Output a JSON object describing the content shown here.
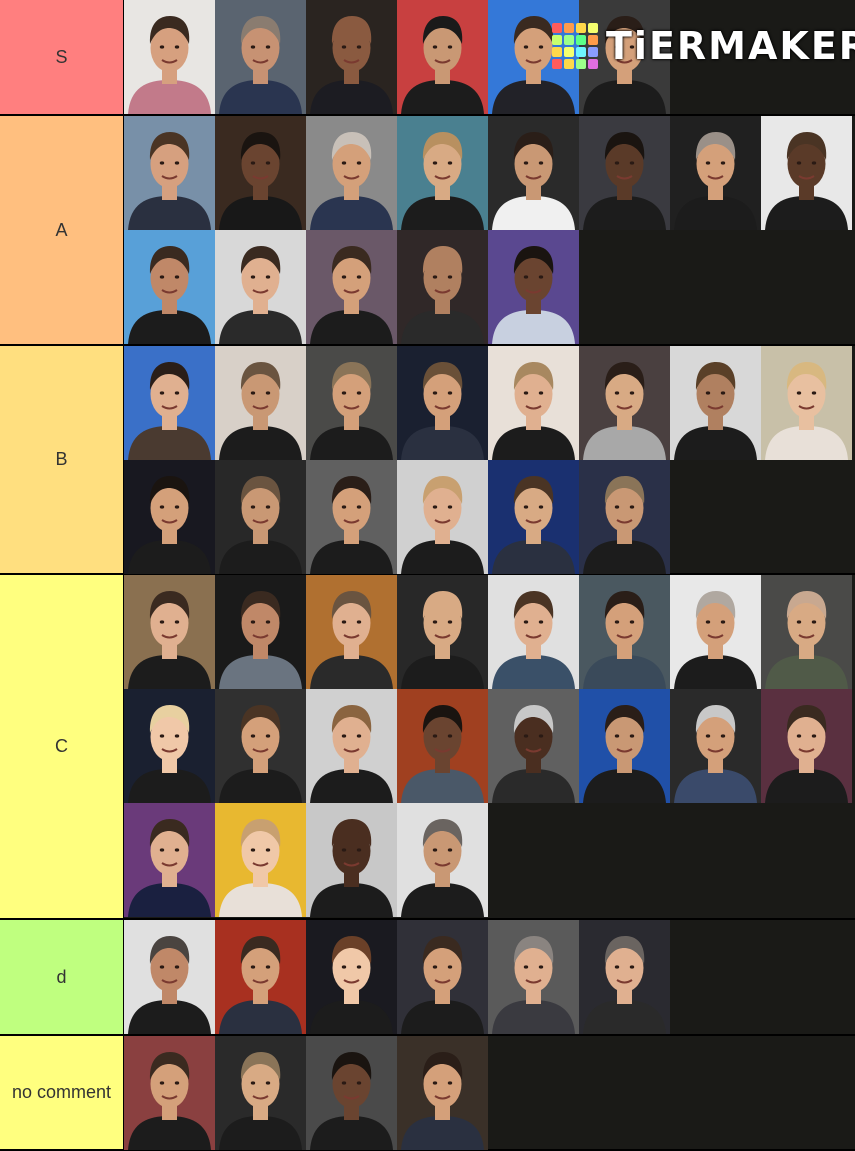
{
  "watermark": {
    "text": "TiERMAKER",
    "colors": [
      "#ff5c5c",
      "#ff9b4a",
      "#ffd84a",
      "#f5ff6e",
      "#c8ff6e",
      "#9cff8a",
      "#5cff8a",
      "#ff9b4a",
      "#ffd84a",
      "#f5ff6e",
      "#6ef5ff",
      "#8a9cff",
      "#ff5c5c",
      "#ffd84a",
      "#9cff8a",
      "#e06ee0"
    ]
  },
  "tiers": [
    {
      "id": "s",
      "label": "S",
      "color": "#ff7f7f",
      "tiles": [
        {
          "bg": "#e8e6e3",
          "skin": "#d6a07f",
          "hair": "#3a2a20",
          "shirt": "#c27a8a"
        },
        {
          "bg": "#5a6470",
          "skin": "#c79273",
          "hair": "#8a7c70",
          "shirt": "#2a3550"
        },
        {
          "bg": "#2a2420",
          "skin": "#8a5a40",
          "hair": "#8a5a40",
          "shirt": "#1c1c22"
        },
        {
          "bg": "#c84040",
          "skin": "#c99874",
          "hair": "#1a1a1a",
          "shirt": "#1c1c1c"
        },
        {
          "bg": "#3478d8",
          "skin": "#d4a07a",
          "hair": "#3a2a20",
          "shirt": "#222228"
        },
        {
          "bg": "#3a3a3a",
          "skin": "#d4a07a",
          "hair": "#2a1e18",
          "shirt": "#1c1c1c"
        }
      ]
    },
    {
      "id": "a",
      "label": "A",
      "color": "#ffbf7f",
      "tiles": [
        {
          "bg": "#7890a8",
          "skin": "#d6a07f",
          "hair": "#4a3424",
          "shirt": "#2a3040"
        },
        {
          "bg": "#3a2a20",
          "skin": "#6a4430",
          "hair": "#1a1410",
          "shirt": "#181818"
        },
        {
          "bg": "#8a8a8a",
          "skin": "#d4a07a",
          "hair": "#c8c0b8",
          "shirt": "#2a3550"
        },
        {
          "bg": "#4a8090",
          "skin": "#d8aa84",
          "hair": "#b89060",
          "shirt": "#1c1c1c"
        },
        {
          "bg": "#2a2a2a",
          "skin": "#c99874",
          "hair": "#2a1e18",
          "shirt": "#f0f0f0"
        },
        {
          "bg": "#3a3a40",
          "skin": "#5a3a28",
          "hair": "#1a1410",
          "shirt": "#1c1c1c"
        },
        {
          "bg": "#202020",
          "skin": "#d4a07a",
          "hair": "#9a9088",
          "shirt": "#1c1c1c"
        },
        {
          "bg": "#e8e8e8",
          "skin": "#5a3a28",
          "hair": "#4a3424",
          "shirt": "#1c1c1c"
        },
        {
          "bg": "#58a0d8",
          "skin": "#c08868",
          "hair": "#3a2a20",
          "shirt": "#1c1c1c"
        },
        {
          "bg": "#d8d8d8",
          "skin": "#e0b090",
          "hair": "#3a2a20",
          "shirt": "#2a2a2a"
        },
        {
          "bg": "#6a5868",
          "skin": "#d4a07a",
          "hair": "#3a2a20",
          "shirt": "#1c1c1c"
        },
        {
          "bg": "#302828",
          "skin": "#b08060",
          "hair": "#b08060",
          "shirt": "#2a2a2a"
        },
        {
          "bg": "#5a4890",
          "skin": "#6a4430",
          "hair": "#1a1410",
          "shirt": "#c8d0e0"
        }
      ]
    },
    {
      "id": "b",
      "label": "B",
      "color": "#ffdf7f",
      "tiles": [
        {
          "bg": "#3a70c8",
          "skin": "#e0b090",
          "hair": "#2a1e18",
          "shirt": "#4a3a30"
        },
        {
          "bg": "#d8d0c8",
          "skin": "#c99874",
          "hair": "#6a5440",
          "shirt": "#1c1c1c"
        },
        {
          "bg": "#4a4a48",
          "skin": "#d4a07a",
          "hair": "#8a7458",
          "shirt": "#1c1c1c"
        },
        {
          "bg": "#1a2030",
          "skin": "#d4a07a",
          "hair": "#6a5038",
          "shirt": "#2a3040"
        },
        {
          "bg": "#e8e0d8",
          "skin": "#e0b090",
          "hair": "#a88860",
          "shirt": "#1c1c1c"
        },
        {
          "bg": "#4a4040",
          "skin": "#d8aa84",
          "hair": "#2a1e18",
          "shirt": "#a8a8a8"
        },
        {
          "bg": "#d8d8d8",
          "skin": "#b08060",
          "hair": "#5a4028",
          "shirt": "#1c1c1c"
        },
        {
          "bg": "#c8c0a8",
          "skin": "#e8c0a0",
          "hair": "#d8b880",
          "shirt": "#e8e0d8"
        },
        {
          "bg": "#181820",
          "skin": "#d4a07a",
          "hair": "#1a1410",
          "shirt": "#1c1c1c"
        },
        {
          "bg": "#282828",
          "skin": "#c99874",
          "hair": "#6a5440",
          "shirt": "#1c1c1c"
        },
        {
          "bg": "#606060",
          "skin": "#d4a07a",
          "hair": "#2a1e18",
          "shirt": "#1c1c1c"
        },
        {
          "bg": "#d0d0d0",
          "skin": "#e0b090",
          "hair": "#c8a070",
          "shirt": "#1c1c1c"
        },
        {
          "bg": "#1a3070",
          "skin": "#d8aa84",
          "hair": "#4a3424",
          "shirt": "#2a3040"
        },
        {
          "bg": "#2a3048",
          "skin": "#c99874",
          "hair": "#8a7458",
          "shirt": "#1c1c1c"
        }
      ]
    },
    {
      "id": "c",
      "label": "C",
      "color": "#ffff7f",
      "tiles": [
        {
          "bg": "#8a7050",
          "skin": "#e0b090",
          "hair": "#3a2a20",
          "shirt": "#1c1c1c"
        },
        {
          "bg": "#1a1a1a",
          "skin": "#c08868",
          "hair": "#3a2a20",
          "shirt": "#6a7480"
        },
        {
          "bg": "#b07030",
          "skin": "#e0b090",
          "hair": "#6a5440",
          "shirt": "#2a2a2a"
        },
        {
          "bg": "#282828",
          "skin": "#d8aa84",
          "hair": "#d8aa84",
          "shirt": "#1c1c1c"
        },
        {
          "bg": "#e0e0e0",
          "skin": "#e0b090",
          "hair": "#4a3424",
          "shirt": "#3a5068"
        },
        {
          "bg": "#4a5860",
          "skin": "#d4a07a",
          "hair": "#2a1e18",
          "shirt": "#3a4a5a"
        },
        {
          "bg": "#e8e8e8",
          "skin": "#d4a07a",
          "hair": "#b0a8a0",
          "shirt": "#1c1c1c"
        },
        {
          "bg": "#4a4a48",
          "skin": "#d8aa84",
          "hair": "#c8a890",
          "shirt": "#505a48"
        },
        {
          "bg": "#1a2030",
          "skin": "#f0c8a8",
          "hair": "#e8d0a0",
          "shirt": "#1c1c1c"
        },
        {
          "bg": "#303030",
          "skin": "#d4a07a",
          "hair": "#4a3424",
          "shirt": "#1c1c1c"
        },
        {
          "bg": "#d0d0d0",
          "skin": "#e0b090",
          "hair": "#8a6440",
          "shirt": "#1c1c1c"
        },
        {
          "bg": "#a04020",
          "skin": "#6a4430",
          "hair": "#1a1410",
          "shirt": "#4a5868"
        },
        {
          "bg": "#606060",
          "skin": "#4a2e20",
          "hair": "#c8c8c8",
          "shirt": "#2a2a2a"
        },
        {
          "bg": "#2050a8",
          "skin": "#c99874",
          "hair": "#2a1e18",
          "shirt": "#1c1c1c"
        },
        {
          "bg": "#2a2a2a",
          "skin": "#d4a07a",
          "hair": "#c8c8c8",
          "shirt": "#3a4a6a"
        },
        {
          "bg": "#5a3040",
          "skin": "#e0b090",
          "hair": "#3a2a20",
          "shirt": "#1c1c1c"
        },
        {
          "bg": "#6a3a7a",
          "skin": "#e0b090",
          "hair": "#3a2a20",
          "shirt": "#1a2040"
        },
        {
          "bg": "#e8b830",
          "skin": "#f0c8a8",
          "hair": "#c8a070",
          "shirt": "#e8e0d8"
        },
        {
          "bg": "#c8c8c8",
          "skin": "#4a2e20",
          "hair": "#4a2e20",
          "shirt": "#1c1c1c"
        },
        {
          "bg": "#e0e0e0",
          "skin": "#c99874",
          "hair": "#6a6460",
          "shirt": "#1c1c1c"
        }
      ]
    },
    {
      "id": "d",
      "label": "d",
      "color": "#bfff7f",
      "tiles": [
        {
          "bg": "#e0e0e0",
          "skin": "#c08868",
          "hair": "#4a4440",
          "shirt": "#1c1c1c"
        },
        {
          "bg": "#a83020",
          "skin": "#d4a07a",
          "hair": "#3a2a20",
          "shirt": "#2a3040"
        },
        {
          "bg": "#1a1a20",
          "skin": "#f0c8a8",
          "hair": "#6a4028",
          "shirt": "#1c1c1c"
        },
        {
          "bg": "#303038",
          "skin": "#d4a07a",
          "hair": "#3a2a20",
          "shirt": "#1c1c1c"
        },
        {
          "bg": "#5a5a5a",
          "skin": "#e0b090",
          "hair": "#8a8480",
          "shirt": "#3a3a40"
        },
        {
          "bg": "#2a2a30",
          "skin": "#e0b090",
          "hair": "#6a6460",
          "shirt": "#2a2a2a"
        }
      ]
    },
    {
      "id": "no-comment",
      "label": "no comment",
      "color": "#ffff7f",
      "tiles": [
        {
          "bg": "#8a4040",
          "skin": "#d4a07a",
          "hair": "#3a2a20",
          "shirt": "#1c1c1c"
        },
        {
          "bg": "#2a2a2a",
          "skin": "#d8aa84",
          "hair": "#8a7458",
          "shirt": "#1c1c1c"
        },
        {
          "bg": "#4a4a4a",
          "skin": "#6a4430",
          "hair": "#1a1410",
          "shirt": "#1c1c1c"
        },
        {
          "bg": "#3a3028",
          "skin": "#d4a07a",
          "hair": "#2a1e18",
          "shirt": "#2a3040"
        }
      ]
    }
  ]
}
